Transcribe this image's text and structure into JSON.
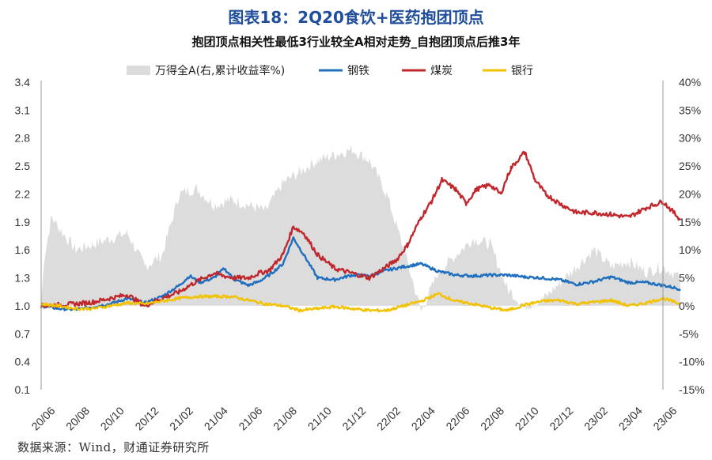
{
  "title": "图表18：2Q20食饮+医药抱团顶点",
  "subtitle": "抱团顶点相关性最低3行业较全A相对走势_自抱团顶点后推3年",
  "source": "数据来源：Wind，财通证券研究所",
  "chart_data": {
    "type": "line",
    "x_tick_labels": [
      "20/06",
      "20/08",
      "20/10",
      "20/12",
      "21/02",
      "21/04",
      "21/06",
      "21/08",
      "21/10",
      "21/12",
      "22/02",
      "22/04",
      "22/06",
      "22/08",
      "22/10",
      "22/12",
      "23/02",
      "23/04",
      "23/06"
    ],
    "y_left": {
      "min": 0.1,
      "max": 3.4,
      "ticks": [
        "3.4",
        "3.1",
        "2.8",
        "2.5",
        "2.2",
        "1.9",
        "1.6",
        "1.3",
        "1.0",
        "0.7",
        "0.4",
        "0.1"
      ]
    },
    "y_right": {
      "min": -15,
      "max": 40,
      "ticks": [
        "40%",
        "35%",
        "30%",
        "25%",
        "20%",
        "15%",
        "10%",
        "5%",
        "0%",
        "-5%",
        "-10%",
        "-15%"
      ]
    },
    "legend": [
      {
        "name": "万得全A(右,累计收益率%)",
        "color": "#dcdcdc",
        "kind": "area"
      },
      {
        "name": "钢铁",
        "color": "#1f6fbf",
        "kind": "line"
      },
      {
        "name": "煤炭",
        "color": "#c0282d",
        "kind": "line"
      },
      {
        "name": "银行",
        "color": "#f2c200",
        "kind": "line"
      }
    ],
    "series": [
      {
        "name": "万得全A(右,累计收益率%)",
        "axis": "right",
        "color": "#dcdcdc",
        "x": [
          0,
          0.08,
          0.3,
          0.5,
          1,
          1.5,
          2,
          2.5,
          3,
          3.5,
          4,
          4.5,
          5,
          5.5,
          6,
          6.5,
          7,
          7.5,
          8,
          8.5,
          9,
          9.5,
          10,
          10.5,
          11,
          11.5,
          12,
          12.5,
          13,
          13.5,
          14,
          14.5,
          15,
          15.5,
          16,
          16.5,
          17,
          17.5,
          18,
          18.5
        ],
        "values": [
          0,
          8,
          16,
          14,
          10,
          11,
          12,
          13,
          7,
          9,
          20,
          21,
          18,
          19,
          18,
          17,
          22,
          24,
          26,
          27,
          28,
          26,
          20,
          10,
          -1,
          6,
          9,
          12,
          11,
          3,
          0,
          1,
          4,
          7,
          10,
          7,
          8,
          6,
          7,
          5
        ]
      },
      {
        "name": "钢铁",
        "axis": "left",
        "color": "#1f6fbf",
        "x": [
          0,
          0.5,
          1,
          1.5,
          2,
          2.5,
          3,
          3.5,
          4,
          4.3,
          4.6,
          5,
          5.3,
          5.6,
          6,
          6.3,
          6.6,
          7,
          7.3,
          7.6,
          8,
          8.5,
          9,
          9.5,
          10,
          10.5,
          11,
          11.5,
          12,
          12.5,
          13,
          13.5,
          14,
          14.5,
          15,
          15.5,
          16,
          16.5,
          17,
          17.5,
          18,
          18.5
        ],
        "values": [
          1.0,
          0.97,
          0.96,
          0.99,
          1.02,
          1.08,
          1.03,
          1.1,
          1.22,
          1.32,
          1.25,
          1.3,
          1.4,
          1.28,
          1.22,
          1.26,
          1.33,
          1.45,
          1.73,
          1.55,
          1.3,
          1.28,
          1.33,
          1.32,
          1.38,
          1.42,
          1.45,
          1.37,
          1.33,
          1.32,
          1.33,
          1.33,
          1.31,
          1.3,
          1.28,
          1.23,
          1.26,
          1.31,
          1.25,
          1.25,
          1.22,
          1.18
        ]
      },
      {
        "name": "煤炭",
        "axis": "left",
        "color": "#c0282d",
        "x": [
          0,
          0.5,
          1,
          1.5,
          2,
          2.5,
          3,
          3.5,
          4,
          4.3,
          4.6,
          5,
          5.3,
          5.6,
          6,
          6.3,
          6.6,
          7,
          7.3,
          7.6,
          8,
          8.5,
          9,
          9.5,
          10,
          10.3,
          10.6,
          11,
          11.3,
          11.6,
          12,
          12.3,
          12.6,
          13,
          13.3,
          13.6,
          14,
          14.3,
          14.6,
          15,
          15.5,
          16,
          16.5,
          17,
          17.5,
          18,
          18.5
        ],
        "values": [
          1.0,
          1.01,
          1.02,
          1.04,
          1.08,
          1.12,
          1.0,
          1.08,
          1.15,
          1.22,
          1.28,
          1.35,
          1.32,
          1.3,
          1.3,
          1.35,
          1.38,
          1.55,
          1.85,
          1.78,
          1.55,
          1.4,
          1.35,
          1.3,
          1.42,
          1.5,
          1.65,
          1.95,
          2.12,
          2.35,
          2.25,
          2.1,
          2.25,
          2.3,
          2.2,
          2.48,
          2.65,
          2.35,
          2.2,
          2.1,
          2.0,
          2.0,
          1.98,
          1.95,
          2.05,
          2.12,
          1.93
        ]
      },
      {
        "name": "银行",
        "axis": "left",
        "color": "#f2c200",
        "x": [
          0,
          0.5,
          1,
          1.5,
          2,
          2.5,
          3,
          3.5,
          4,
          4.5,
          5,
          5.5,
          6,
          6.5,
          7,
          7.5,
          8,
          8.5,
          9,
          9.5,
          10,
          10.5,
          11,
          11.5,
          12,
          12.5,
          13,
          13.5,
          14,
          14.5,
          15,
          15.5,
          16,
          16.5,
          17,
          17.5,
          18,
          18.5
        ],
        "values": [
          1.02,
          1.0,
          0.97,
          0.97,
          1.0,
          1.03,
          1.02,
          1.05,
          1.08,
          1.1,
          1.1,
          1.1,
          1.06,
          1.02,
          1.0,
          0.95,
          0.97,
          0.99,
          0.97,
          0.95,
          0.95,
          1.0,
          1.05,
          1.13,
          1.05,
          1.02,
          0.98,
          0.95,
          1.01,
          1.05,
          1.06,
          1.02,
          1.04,
          1.06,
          1.0,
          1.03,
          1.08,
          1.02
        ]
      }
    ]
  }
}
